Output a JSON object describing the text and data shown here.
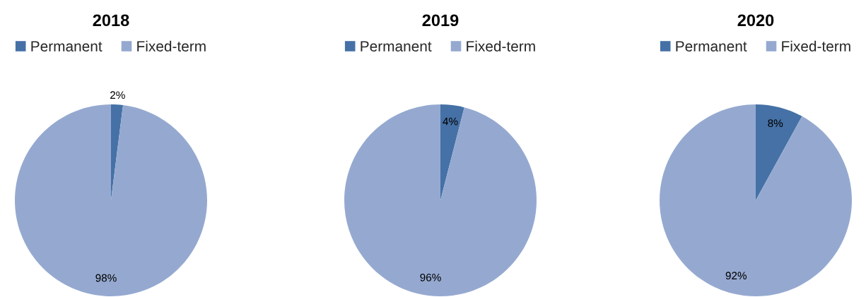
{
  "chart_data": [
    {
      "type": "pie",
      "title": "2018",
      "categories": [
        "Permanent",
        "Fixed-term"
      ],
      "values": [
        2,
        98
      ],
      "colors": [
        "#4571a6",
        "#95a9d0"
      ],
      "value_labels": [
        "2%",
        "98%"
      ],
      "legend": "top"
    },
    {
      "type": "pie",
      "title": "2019",
      "categories": [
        "Permanent",
        "Fixed-term"
      ],
      "values": [
        4,
        96
      ],
      "colors": [
        "#4571a6",
        "#95a9d0"
      ],
      "value_labels": [
        "4%",
        "96%"
      ],
      "legend": "top"
    },
    {
      "type": "pie",
      "title": "2020",
      "categories": [
        "Permanent",
        "Fixed-term"
      ],
      "values": [
        8,
        92
      ],
      "colors": [
        "#4571a6",
        "#95a9d0"
      ],
      "value_labels": [
        "8%",
        "92%"
      ],
      "legend": "top"
    }
  ]
}
